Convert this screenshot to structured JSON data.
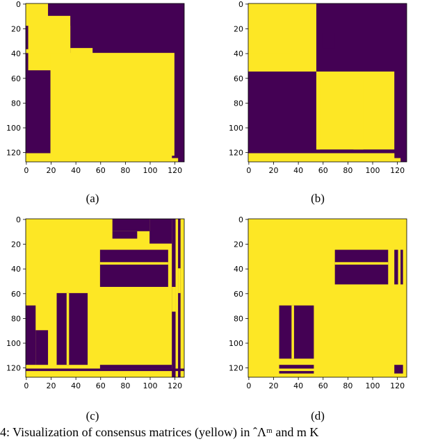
{
  "colors": {
    "fill_0": "#440154",
    "fill_1": "#fde725",
    "axis": "#000000"
  },
  "axis_ticks": [
    "0",
    "20",
    "40",
    "60",
    "80",
    "100",
    "120"
  ],
  "panels": [
    {
      "label": "(a)",
      "rects": [
        [
          0,
          0,
          128,
          128,
          0
        ],
        [
          0,
          0,
          18,
          18,
          1
        ],
        [
          18,
          18,
          36,
          36,
          1
        ],
        [
          36,
          36,
          54,
          54,
          1
        ],
        [
          55,
          55,
          65,
          65,
          1
        ],
        [
          65,
          65,
          78,
          78,
          1
        ],
        [
          78,
          78,
          90,
          90,
          1
        ],
        [
          90,
          90,
          104,
          104,
          1
        ],
        [
          104,
          104,
          118,
          118,
          1
        ],
        [
          0,
          18,
          3,
          10,
          1
        ],
        [
          18,
          36,
          6,
          12,
          1
        ],
        [
          36,
          54,
          2,
          10,
          1
        ],
        [
          54,
          104,
          70,
          72,
          1
        ],
        [
          54,
          104,
          82,
          84,
          1
        ],
        [
          54,
          104,
          98,
          100,
          1
        ],
        [
          54,
          104,
          110,
          112,
          1
        ],
        [
          70,
          72,
          54,
          118,
          1
        ],
        [
          82,
          84,
          54,
          118,
          1
        ],
        [
          98,
          100,
          54,
          118,
          1
        ],
        [
          0,
          128,
          118,
          121,
          1
        ],
        [
          0,
          128,
          123,
          125,
          1
        ],
        [
          118,
          121,
          0,
          128,
          1
        ],
        [
          123,
          125,
          0,
          128,
          1
        ],
        [
          0,
          40,
          35,
          37,
          1
        ],
        [
          35,
          37,
          0,
          40,
          1
        ],
        [
          120,
          123,
          20,
          40,
          1
        ],
        [
          20,
          40,
          120,
          123,
          1
        ]
      ]
    },
    {
      "label": "(b)",
      "rects": [
        [
          0,
          0,
          128,
          128,
          0
        ],
        [
          0,
          0,
          55,
          55,
          1
        ],
        [
          55,
          55,
          118,
          118,
          1
        ],
        [
          0,
          128,
          118,
          121,
          1
        ],
        [
          0,
          128,
          123,
          125,
          1
        ],
        [
          118,
          121,
          0,
          128,
          1
        ],
        [
          123,
          125,
          0,
          128,
          1
        ],
        [
          0,
          40,
          35,
          37,
          1
        ],
        [
          35,
          37,
          0,
          40,
          1
        ],
        [
          0,
          10,
          0,
          30,
          0
        ],
        [
          10,
          0,
          10,
          30,
          1
        ],
        [
          40,
          10,
          50,
          15,
          1
        ],
        [
          60,
          24,
          70,
          36,
          0
        ],
        [
          85,
          60,
          93,
          118,
          1
        ],
        [
          55,
          60,
          58,
          118,
          1
        ]
      ]
    },
    {
      "label": "(c)",
      "rects": [
        [
          0,
          0,
          128,
          128,
          1
        ],
        [
          70,
          0,
          100,
          10,
          0
        ],
        [
          70,
          10,
          90,
          16,
          0
        ],
        [
          60,
          25,
          115,
          55,
          0
        ],
        [
          100,
          0,
          118,
          20,
          0
        ],
        [
          60,
          35,
          115,
          37,
          1
        ],
        [
          0,
          70,
          8,
          118,
          0
        ],
        [
          8,
          90,
          18,
          118,
          0
        ],
        [
          25,
          60,
          50,
          118,
          0
        ],
        [
          33,
          60,
          35,
          118,
          1
        ],
        [
          60,
          118,
          118,
          121,
          0
        ],
        [
          0,
          121,
          128,
          123,
          0
        ],
        [
          118,
          0,
          121,
          128,
          0
        ],
        [
          123,
          0,
          125,
          128,
          0
        ],
        [
          118,
          55,
          121,
          75,
          1
        ],
        [
          123,
          40,
          125,
          60,
          1
        ]
      ]
    },
    {
      "label": "(d)",
      "rects": [
        [
          0,
          0,
          128,
          128,
          1
        ],
        [
          70,
          25,
          113,
          53,
          0
        ],
        [
          70,
          35,
          113,
          37,
          1
        ],
        [
          25,
          70,
          53,
          113,
          0
        ],
        [
          35,
          70,
          37,
          113,
          1
        ],
        [
          118,
          25,
          121,
          53,
          0
        ],
        [
          123,
          25,
          125,
          53,
          0
        ],
        [
          25,
          118,
          53,
          121,
          0
        ],
        [
          25,
          123,
          53,
          125,
          0
        ],
        [
          118,
          118,
          125,
          125,
          0
        ]
      ]
    }
  ],
  "caption": "4: Visualization of consensus matrices (yellow) in ˆΛᵐ and m K"
}
